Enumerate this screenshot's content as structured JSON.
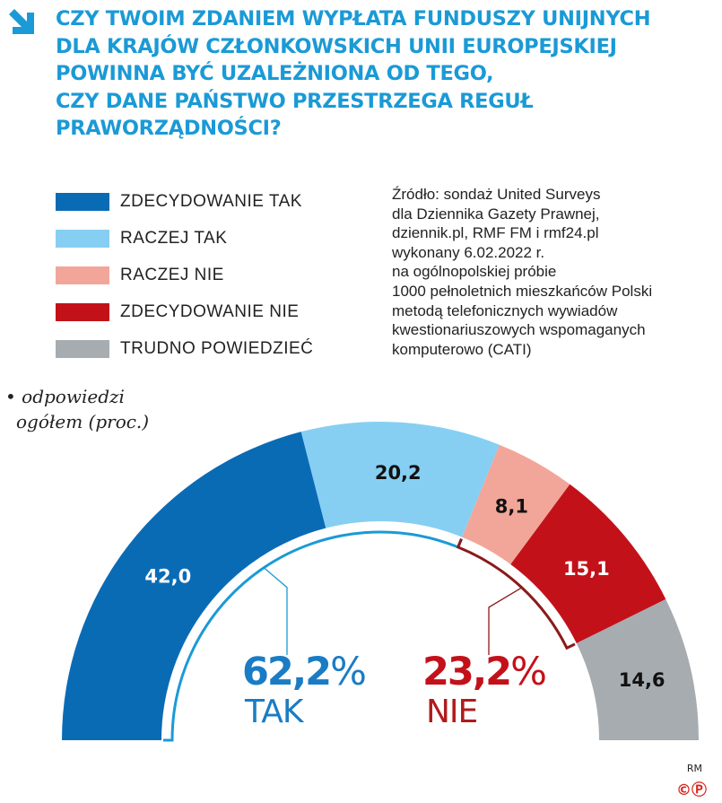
{
  "title_lines": [
    "CZY TWOIM ZDANIEM WYPŁATA FUNDUSZY UNIJNYCH",
    "DLA KRAJÓW CZŁONKOWSKICH UNII EUROPEJSKIEJ",
    "POWINNA BYĆ UZALEŻNIONA OD TEGO,",
    "CZY DANE PAŃSTWO PRZESTRZEGA REGUŁ",
    "PRAWORZĄDNOŚCI?"
  ],
  "title_color": "#1a9ad6",
  "icon": "arrow-down-right-icon",
  "source_lines": [
    "Źródło: sondaż United Surveys",
    "dla Dziennika Gazety Prawnej,",
    "dziennik.pl, RMF FM i rmf24.pl",
    "wykonany 6.02.2022 r.",
    "na ogólnopolskiej próbie",
    "1000 pełnoletnich mieszkańców Polski",
    "metodą telefonicznych wywiadów",
    "kwestionariuszowych wspomaganych",
    "komputerowo (CATI)"
  ],
  "note_lines": [
    "• odpowiedzi",
    "ogółem (proc.)"
  ],
  "credit": {
    "author": "RM",
    "marks": "©Ⓟ"
  },
  "chart_data": {
    "type": "pie",
    "shape": "semi-donut",
    "unit": "%",
    "categories": [
      "ZDECYDOWANIE TAK",
      "RACZEJ TAK",
      "RACZEJ NIE",
      "ZDECYDOWANIE NIE",
      "TRUDNO POWIEDZIEĆ"
    ],
    "values": [
      42.0,
      20.2,
      8.1,
      15.1,
      14.6
    ],
    "value_labels": [
      "42,0",
      "20,2",
      "8,1",
      "15,1",
      "14,6"
    ],
    "colors": [
      "#0a6bb5",
      "#86cff3",
      "#f2a699",
      "#c3111a",
      "#a7acb0"
    ],
    "label_colors": [
      "#ffffff",
      "#111111",
      "#111111",
      "#ffffff",
      "#111111"
    ],
    "legend_placement": "top-left",
    "groups": [
      {
        "value_label": "62,2",
        "pct": "%",
        "word": "TAK",
        "value": 62.2,
        "color": "#1a7cc4",
        "word_color": "#1a7cc4",
        "bracket_color": "#1a9ad6"
      },
      {
        "value_label": "23,2",
        "pct": "%",
        "word": "NIE",
        "value": 23.2,
        "color": "#c3111a",
        "word_color": "#b01c1c",
        "bracket_color": "#8b1a1a"
      }
    ]
  }
}
